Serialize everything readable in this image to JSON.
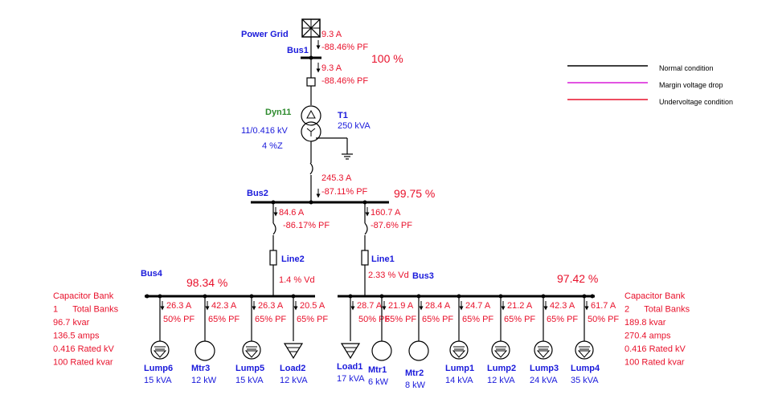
{
  "grid": {
    "name": "Power Grid",
    "current": "9.3 A",
    "pf": "-88.46% PF"
  },
  "bus1": {
    "name": "Bus1",
    "voltage": "100 %",
    "current": "9.3 A",
    "pf": "-88.46% PF"
  },
  "transformer": {
    "name": "T1",
    "vector": "Dyn11",
    "kva": "250 kVA",
    "voltage": "11/0.416 kV",
    "impedance": "4 %Z"
  },
  "bus2": {
    "name": "Bus2",
    "voltage": "99.75 %",
    "in_current": "245.3 A",
    "in_pf": "-87.11% PF"
  },
  "feeder_left": {
    "current": "84.6 A",
    "pf": "-86.17% PF",
    "line": "Line2",
    "vd": "1.4 % Vd"
  },
  "feeder_right": {
    "current": "160.7 A",
    "pf": "-87.6% PF",
    "line": "Line1",
    "vd": "2.33 % Vd"
  },
  "bus4": {
    "name": "Bus4",
    "voltage": "98.34 %"
  },
  "bus3": {
    "name": "Bus3",
    "voltage": "97.42 %"
  },
  "cap_left": {
    "lines": [
      "Capacitor Bank",
      "1      Total Banks",
      "96.7 kvar",
      "136.5 amps",
      "0.416 Rated kV",
      "100 Rated kvar"
    ]
  },
  "cap_right": {
    "lines": [
      "Capacitor Bank",
      "2      Total Banks",
      "189.8 kvar",
      "270.4 amps",
      "0.416 Rated kV",
      "100 Rated kvar"
    ]
  },
  "loads_bus4": [
    {
      "name": "Lump6",
      "rating": "15 kVA",
      "current": "26.3 A",
      "pf": "50% PF",
      "symbol": "lump-load-icon"
    },
    {
      "name": "Mtr3",
      "rating": "12 kW",
      "current": "42.3 A",
      "pf": "65% PF",
      "symbol": "motor-icon"
    },
    {
      "name": "Lump5",
      "rating": "15 kVA",
      "current": "26.3 A",
      "pf": "65% PF",
      "symbol": "lump-load-icon"
    },
    {
      "name": "Load2",
      "rating": "12 kVA",
      "current": "20.5 A",
      "pf": "65% PF",
      "symbol": "static-load-icon"
    }
  ],
  "loads_bus3": [
    {
      "name": "Load1",
      "rating": "17 kVA",
      "current": "28.7 A",
      "pf": "50% PF",
      "symbol": "static-load-icon"
    },
    {
      "name": "Mtr1",
      "rating": "6 kW",
      "current": "21.9 A",
      "pf": "65% PF",
      "symbol": "motor-icon"
    },
    {
      "name": "Mtr2",
      "rating": "8 kW",
      "current": "28.4 A",
      "pf": "65% PF",
      "symbol": "motor-icon"
    },
    {
      "name": "Lump1",
      "rating": "14 kVA",
      "current": "24.7 A",
      "pf": "65% PF",
      "symbol": "lump-load-icon"
    },
    {
      "name": "Lump2",
      "rating": "12 kVA",
      "current": "21.2 A",
      "pf": "65% PF",
      "symbol": "lump-load-icon"
    },
    {
      "name": "Lump3",
      "rating": "24 kVA",
      "current": "42.3 A",
      "pf": "65% PF",
      "symbol": "lump-load-icon"
    },
    {
      "name": "Lump4",
      "rating": "35 kVA",
      "current": "61.7 A",
      "pf": "50% PF",
      "symbol": "lump-load-icon"
    }
  ],
  "legend": [
    {
      "label": "Normal condition",
      "color": "#000000"
    },
    {
      "label": "Margin voltage drop",
      "color": "#d81bd8"
    },
    {
      "label": "Undervoltage condition",
      "color": "#e8112b"
    }
  ]
}
